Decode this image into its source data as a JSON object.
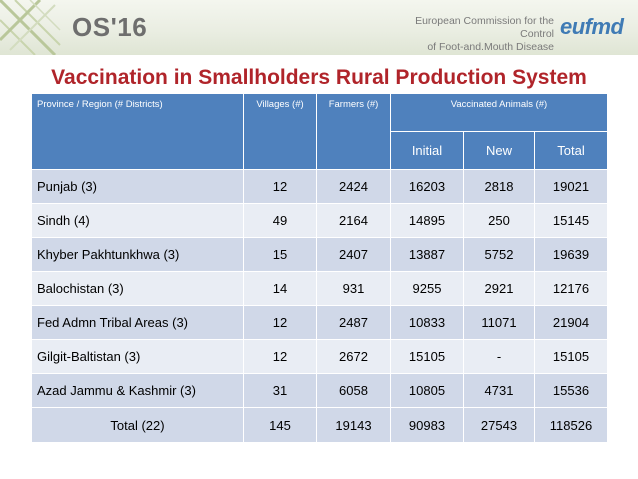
{
  "header": {
    "conference_label": "OS'16",
    "organization_lines": [
      "European Commission for the Control",
      "of Foot-and.Mouth Disease"
    ],
    "logo_text": "eufmd",
    "accent_color": "#3f7bb5"
  },
  "slide": {
    "title": "Vaccination in Smallholders Rural Production System",
    "title_color": "#b0242a"
  },
  "table": {
    "header_color": "#4f81bd",
    "columns": {
      "province": "Province / Region (# Districts)",
      "villages": "Villages (#)",
      "farmers": "Farmers (#)",
      "vaccinated": "Vaccinated Animals (#)",
      "initial": "Initial",
      "new": "New",
      "total": "Total"
    },
    "rows": [
      {
        "province": "Punjab (3)",
        "villages": "12",
        "farmers": "2424",
        "initial": "16203",
        "new": "2818",
        "total": "19021"
      },
      {
        "province": "Sindh (4)",
        "villages": "49",
        "farmers": "2164",
        "initial": "14895",
        "new": "250",
        "total": "15145"
      },
      {
        "province": "Khyber Pakhtunkhwa (3)",
        "villages": "15",
        "farmers": "2407",
        "initial": "13887",
        "new": "5752",
        "total": "19639"
      },
      {
        "province": "Balochistan (3)",
        "villages": "14",
        "farmers": "931",
        "initial": "9255",
        "new": "2921",
        "total": "12176"
      },
      {
        "province": "Fed Admn Tribal Areas (3)",
        "villages": "12",
        "farmers": "2487",
        "initial": "10833",
        "new": "11071",
        "total": "21904"
      },
      {
        "province": "Gilgit-Baltistan (3)",
        "villages": "12",
        "farmers": "2672",
        "initial": "15105",
        "new": "-",
        "total": "15105"
      },
      {
        "province": "Azad Jammu & Kashmir (3)",
        "villages": "31",
        "farmers": "6058",
        "initial": "10805",
        "new": "4731",
        "total": "15536"
      }
    ],
    "totals": {
      "province": "Total (22)",
      "villages": "145",
      "farmers": "19143",
      "initial": "90983",
      "new": "27543",
      "total": "118526"
    }
  }
}
